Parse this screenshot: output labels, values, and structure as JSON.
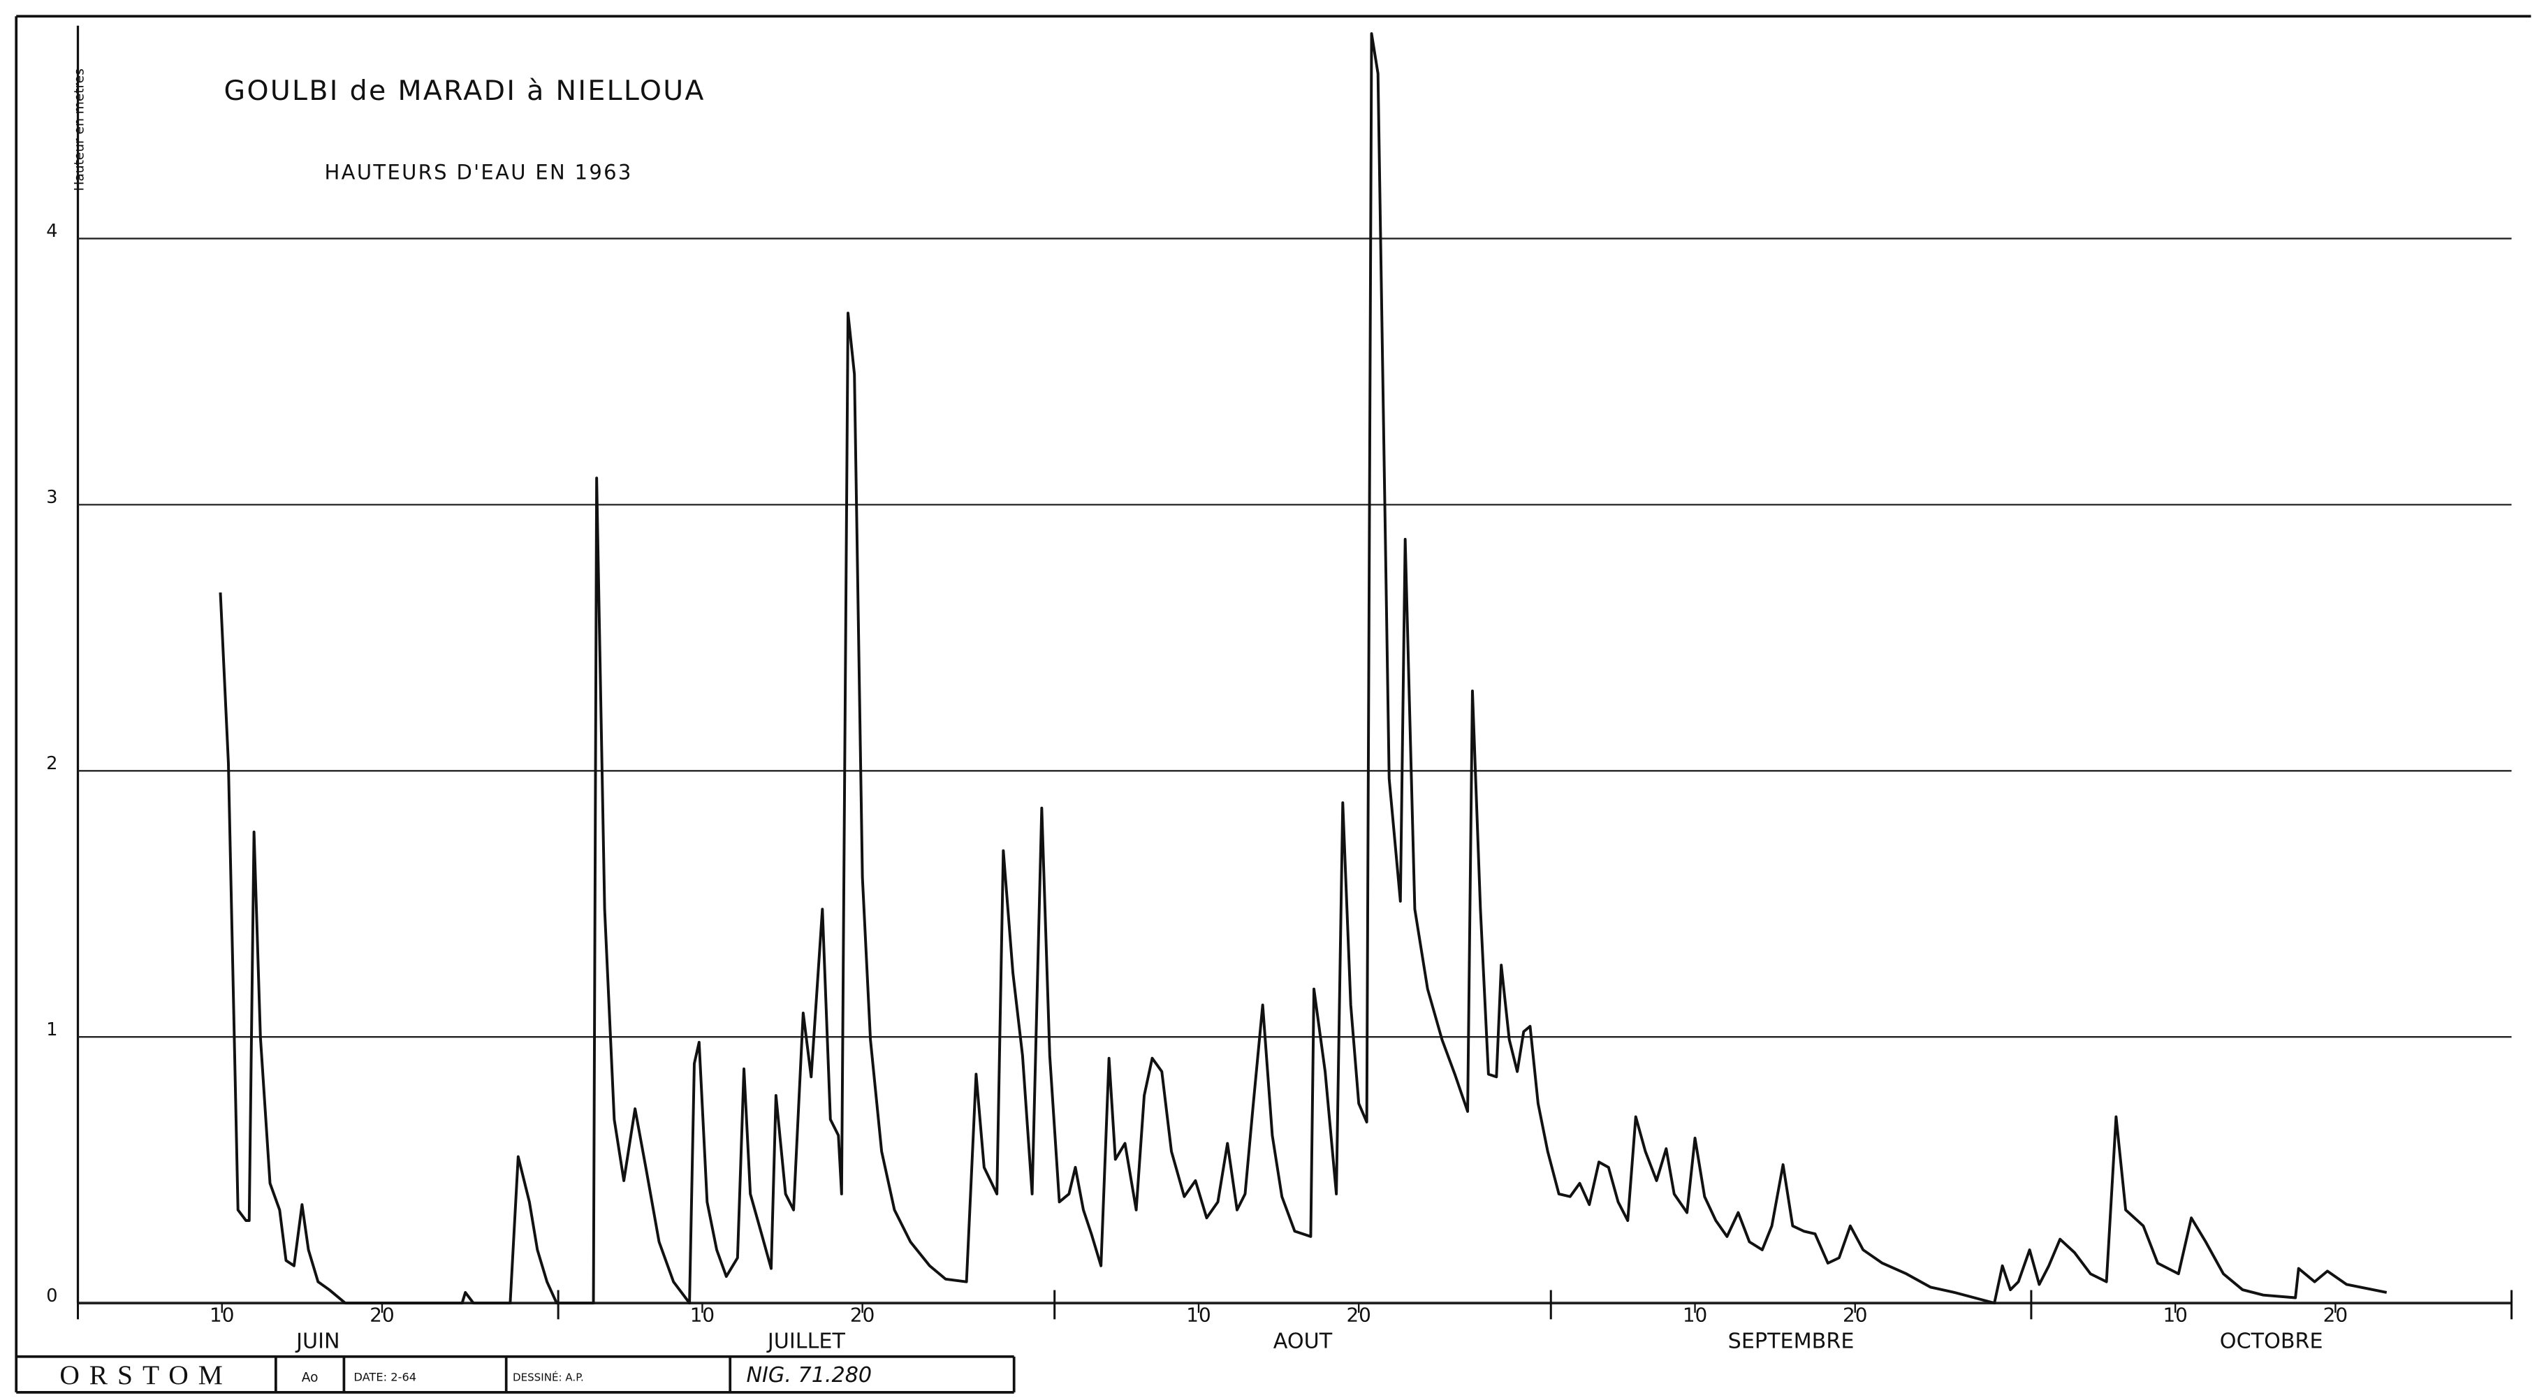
{
  "chart_data": {
    "type": "line",
    "title": "GOULBI de MARADI à NIELLOUA",
    "subtitle": "HAUTEURS D'EAU EN 1963",
    "y_label": "Hauteur en metres",
    "color": "#111111",
    "grid": true,
    "xlim": [
      1,
      153
    ],
    "ylim": [
      0,
      4.8
    ],
    "yticks": [
      0,
      1,
      2,
      3,
      4
    ],
    "xticks": [
      {
        "value": 10,
        "label": "10"
      },
      {
        "value": 20,
        "label": "20"
      },
      {
        "value": 40,
        "label": "10"
      },
      {
        "value": 50,
        "label": "20"
      },
      {
        "value": 71,
        "label": "10"
      },
      {
        "value": 81,
        "label": "20"
      },
      {
        "value": 102,
        "label": "10"
      },
      {
        "value": 112,
        "label": "20"
      },
      {
        "value": 132,
        "label": "10"
      },
      {
        "value": 142,
        "label": "20"
      }
    ],
    "month_ticks": [
      1,
      31,
      62,
      93,
      123,
      153
    ],
    "months": [
      "JUIN",
      "JUILLET",
      "AOUT",
      "SEPTEMBRE",
      "OCTOBRE"
    ],
    "x": [
      9.9,
      10.4,
      11,
      11.5,
      11.7,
      12,
      12.4,
      13,
      13.6,
      14,
      14.5,
      15,
      15.4,
      16,
      16.7,
      17.7,
      25,
      25.2,
      25.7,
      28,
      28.5,
      29.2,
      29.7,
      30.3,
      30.9,
      33.2,
      33.4,
      33.9,
      34.5,
      35.1,
      35.8,
      36.5,
      37.3,
      38.2,
      39.2,
      39.5,
      39.8,
      40.3,
      40.9,
      41.5,
      42.2,
      42.6,
      43,
      43.7,
      44.3,
      44.6,
      45.2,
      45.7,
      46.3,
      46.8,
      47.5,
      48,
      48.5,
      48.7,
      49.1,
      49.5,
      50,
      50.5,
      51.2,
      52,
      53,
      54.2,
      55.2,
      56.5,
      57.1,
      57.6,
      58.4,
      58.8,
      59.4,
      60,
      60.6,
      61.2,
      61.7,
      62.3,
      62.9,
      63.3,
      63.8,
      64.3,
      64.9,
      65.4,
      65.8,
      66.4,
      67.1,
      67.6,
      68.1,
      68.7,
      69.3,
      70.1,
      70.8,
      71.5,
      72.2,
      72.8,
      73.4,
      73.9,
      74.4,
      75,
      75.6,
      76.2,
      77,
      78,
      78.2,
      78.9,
      79.6,
      80,
      80.5,
      81,
      81.5,
      81.8,
      82.2,
      82.9,
      83.6,
      83.9,
      84.5,
      85.3,
      86.2,
      87,
      87.8,
      88.1,
      88.6,
      89.1,
      89.6,
      89.9,
      90.4,
      90.9,
      91.3,
      91.7,
      92.2,
      92.8,
      93.5,
      94.2,
      94.8,
      95.4,
      96,
      96.6,
      97.2,
      97.8,
      98.3,
      98.9,
      99.6,
      100.2,
      100.7,
      101.5,
      102,
      102.6,
      103.3,
      104,
      104.7,
      105.4,
      106.2,
      106.8,
      107.5,
      108.1,
      108.8,
      109.5,
      110.3,
      111,
      111.7,
      112.5,
      113.7,
      115.2,
      116.7,
      118.2,
      120.7,
      121.2,
      121.7,
      122.2,
      122.9,
      123.5,
      124.1,
      124.8,
      125.7,
      126.7,
      127.7,
      128.3,
      128.9,
      130,
      130.9,
      132.2,
      133,
      133.9,
      135,
      136.2,
      137.5,
      139.5,
      139.7,
      140.7,
      141.5,
      142.7,
      145.2
    ],
    "values": [
      2.67,
      2.03,
      0.35,
      0.31,
      0.31,
      1.77,
      1.0,
      0.45,
      0.35,
      0.16,
      0.14,
      0.37,
      0.2,
      0.08,
      0.05,
      0,
      0,
      0.04,
      0,
      0,
      0.55,
      0.38,
      0.2,
      0.08,
      0,
      0,
      3.1,
      1.48,
      0.69,
      0.46,
      0.73,
      0.5,
      0.23,
      0.08,
      0,
      0.9,
      0.98,
      0.38,
      0.2,
      0.1,
      0.17,
      0.88,
      0.41,
      0.26,
      0.13,
      0.78,
      0.41,
      0.35,
      1.09,
      0.85,
      1.48,
      0.69,
      0.63,
      0.41,
      3.72,
      3.49,
      1.6,
      0.99,
      0.57,
      0.35,
      0.23,
      0.14,
      0.09,
      0.08,
      0.86,
      0.51,
      0.41,
      1.7,
      1.24,
      0.93,
      0.41,
      1.86,
      0.93,
      0.38,
      0.41,
      0.51,
      0.35,
      0.26,
      0.14,
      0.92,
      0.54,
      0.6,
      0.35,
      0.78,
      0.92,
      0.87,
      0.57,
      0.4,
      0.46,
      0.32,
      0.38,
      0.6,
      0.35,
      0.41,
      0.74,
      1.12,
      0.63,
      0.4,
      0.27,
      0.25,
      1.18,
      0.87,
      0.41,
      1.88,
      1.12,
      0.75,
      0.68,
      4.77,
      4.62,
      1.97,
      1.51,
      2.87,
      1.48,
      1.18,
      0.99,
      0.86,
      0.72,
      2.3,
      1.48,
      0.86,
      0.85,
      1.27,
      0.99,
      0.87,
      1.02,
      1.04,
      0.75,
      0.57,
      0.41,
      0.4,
      0.45,
      0.37,
      0.53,
      0.51,
      0.38,
      0.31,
      0.7,
      0.57,
      0.46,
      0.58,
      0.41,
      0.34,
      0.62,
      0.4,
      0.31,
      0.25,
      0.34,
      0.23,
      0.2,
      0.29,
      0.52,
      0.29,
      0.27,
      0.26,
      0.15,
      0.17,
      0.29,
      0.2,
      0.15,
      0.11,
      0.06,
      0.04,
      0,
      0.14,
      0.05,
      0.08,
      0.2,
      0.07,
      0.14,
      0.24,
      0.19,
      0.11,
      0.08,
      0.7,
      0.35,
      0.29,
      0.15,
      0.11,
      0.32,
      0.23,
      0.11,
      0.05,
      0.03,
      0.02,
      0.13,
      0.08,
      0.12,
      0.07,
      0.04
    ]
  },
  "footer": {
    "org": "ORSTOM",
    "code": "Ao",
    "date": "DATE: 2-64",
    "drawn_by": "DESSINÉ: A.P.",
    "ref": "NIG. 71.280"
  }
}
